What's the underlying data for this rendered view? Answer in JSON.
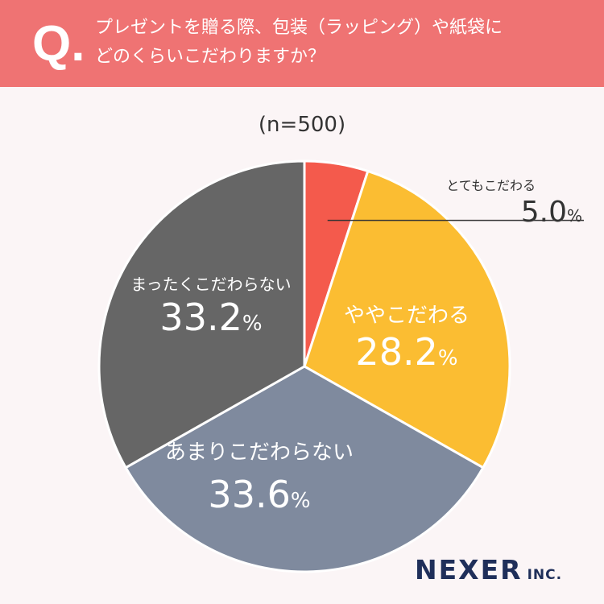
{
  "header": {
    "q_mark": "Q.",
    "question_line1": "プレゼントを贈る際、包装（ラッピング）や紙袋に",
    "question_line2": "どのくらいこだわりますか？"
  },
  "sample_size": "(n=500)",
  "logo": {
    "name": "NEXER",
    "suffix": "INC."
  },
  "chart_data": {
    "type": "pie",
    "title": "プレゼントを贈る際、包装（ラッピング）や紙袋にどのくらいこだわりますか？",
    "slices": [
      {
        "label": "とてもこだわる",
        "value": 5.0,
        "value_text": "5.0",
        "unit": "%",
        "color": "#f45a4c"
      },
      {
        "label": "ややこだわる",
        "value": 28.2,
        "value_text": "28.2",
        "unit": "%",
        "color": "#fbbd32"
      },
      {
        "label": "あまりこだわらない",
        "value": 33.6,
        "value_text": "33.6",
        "unit": "%",
        "color": "#7f8a9e"
      },
      {
        "label": "まったくこだわらない",
        "value": 33.2,
        "value_text": "33.2",
        "unit": "%",
        "color": "#666666"
      }
    ]
  }
}
